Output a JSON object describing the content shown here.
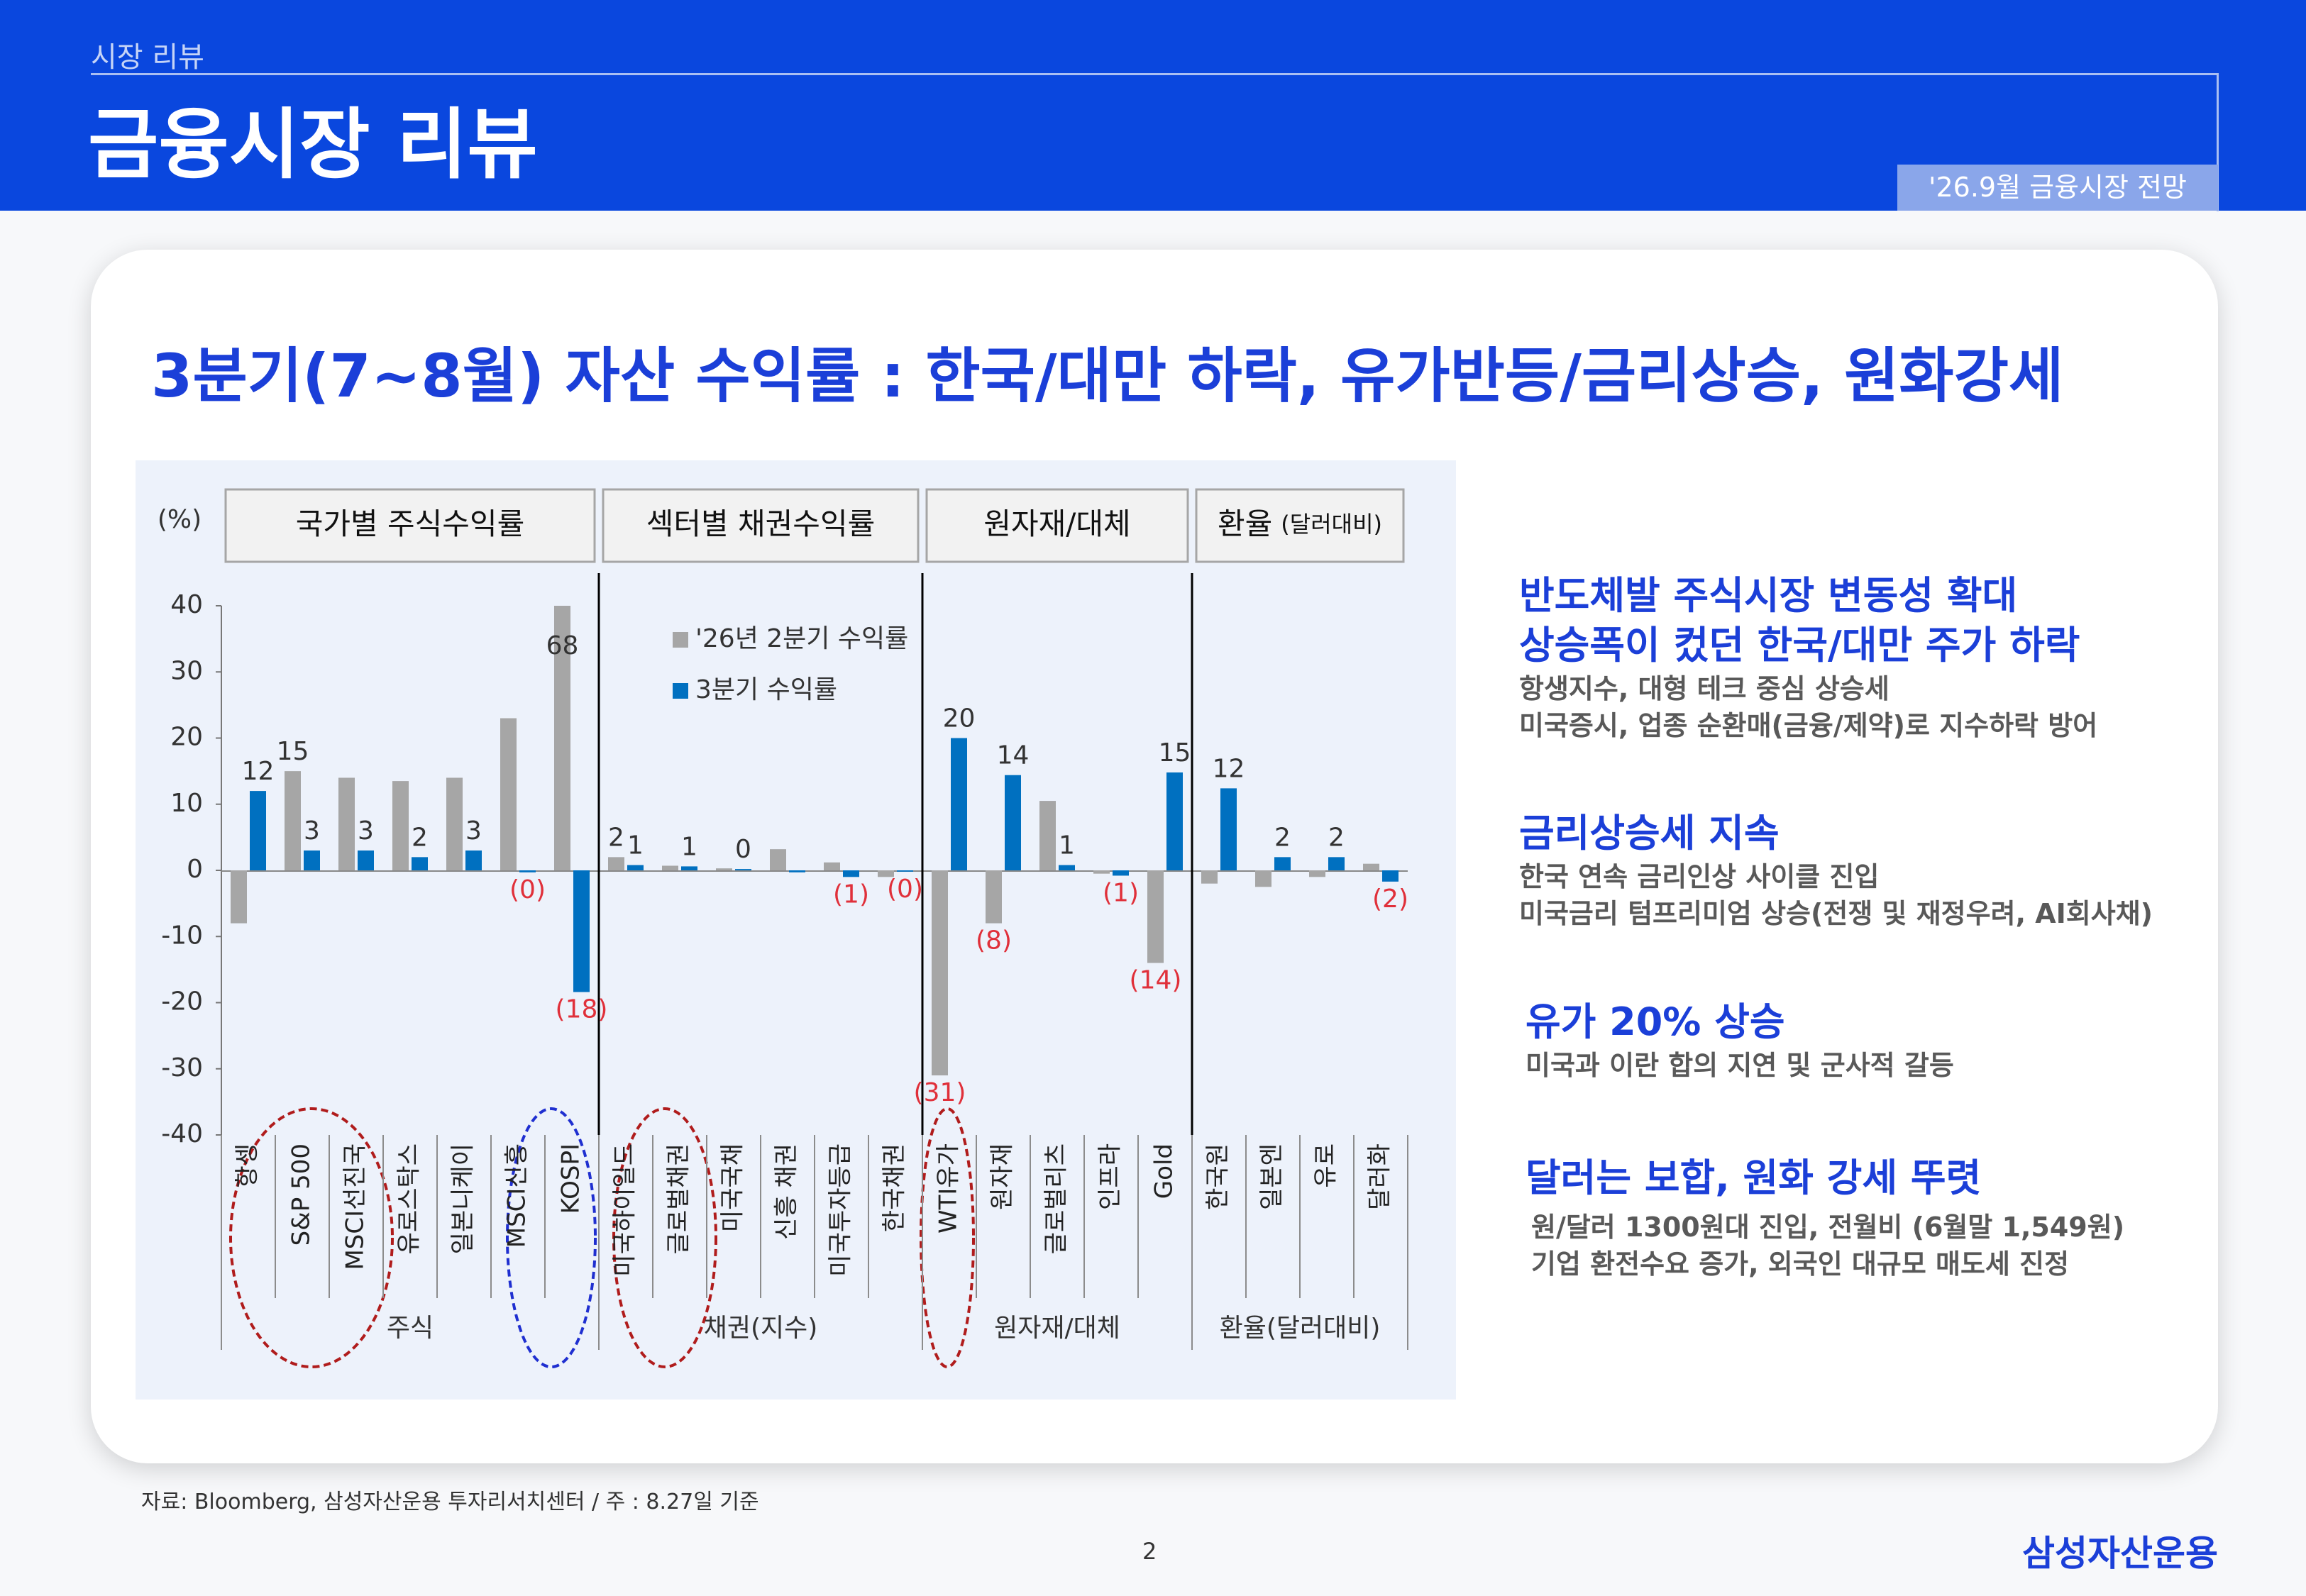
{
  "header": {
    "section": "시장 리뷰",
    "title": "금융시장 리뷰",
    "tag": "'26.9월 금융시장 전망"
  },
  "headline": "3분기(7~8월) 자산 수익률 : 한국/대만 하락, 유가반등/금리상승, 원화강세",
  "chart_data": {
    "type": "bar",
    "unit": "(%)",
    "group_headers": [
      {
        "main": "국가별 주식수익률"
      },
      {
        "main": "섹터별 채권수익률"
      },
      {
        "main": "원자재/대체"
      },
      {
        "main": "환율",
        "note": "(달러대비)"
      }
    ],
    "group_labels": [
      "주식",
      "채권(지수)",
      "원자재/대체",
      "환율(달러대비)"
    ],
    "categories": [
      "항셍",
      "S&P 500",
      "MSCI선진국",
      "유로스탁스",
      "일본니케이",
      "MSCI신흥",
      "KOSPI",
      "미국하이일드",
      "글로벌채권",
      "미국국채",
      "신흥 채권",
      "미국투자등급",
      "한국채권",
      "WTI유가",
      "원자재",
      "글로벌리츠",
      "인프라",
      "Gold",
      "한국원",
      "일본엔",
      "유로",
      "달러화"
    ],
    "series": [
      {
        "name": "'26년 2분기 수익률",
        "color": "#a6a6a6",
        "values": [
          -8,
          15,
          14,
          13.5,
          14,
          23,
          68,
          2,
          0.7,
          0.3,
          3.2,
          1.2,
          -1,
          -31,
          -8,
          10.5,
          -0.5,
          -14,
          -2,
          -2.5,
          -1,
          1
        ],
        "value_labels": [
          null,
          "15",
          null,
          null,
          null,
          null,
          "68",
          "2",
          null,
          null,
          null,
          null,
          null,
          "(31)",
          "(8)",
          null,
          null,
          "(14)",
          null,
          null,
          null,
          null
        ]
      },
      {
        "name": "3분기 수익률",
        "color": "#0070c0",
        "values": [
          12,
          3,
          3,
          2,
          3,
          -0.3,
          -18.4,
          0.8,
          0.6,
          0.2,
          -0.3,
          -1,
          -0.2,
          20,
          14.4,
          0.8,
          -0.8,
          14.8,
          12.4,
          2,
          2,
          -1.7
        ],
        "value_labels": [
          "12",
          "3",
          "3",
          "2",
          "3",
          "(0)",
          "(18)",
          "1",
          "1",
          "0",
          null,
          "(1)",
          "(0)",
          "20",
          "14",
          "1",
          "(1)",
          "15",
          "12",
          "2",
          "2",
          "(2)"
        ]
      }
    ],
    "ylim": [
      -40,
      40
    ],
    "yticks": [
      -40,
      -30,
      -20,
      -10,
      0,
      10,
      20,
      30,
      40
    ]
  },
  "panel": [
    {
      "heading": [
        "반도체발 주식시장 변동성 확대",
        "상승폭이 컸던 한국/대만 주가 하락"
      ],
      "details": [
        "항생지수, 대형 테크 중심 상승세",
        "미국증시, 업종 순환매(금융/제약)로 지수하락 방어"
      ]
    },
    {
      "heading": [
        "금리상승세 지속"
      ],
      "details": [
        "한국 연속 금리인상 사이클 진입",
        "미국금리 텀프리미엄 상승(전쟁 및 재정우려, AI회사채)"
      ]
    },
    {
      "heading": [
        "유가 20% 상승"
      ],
      "details": [
        "미국과 이란 합의 지연 및 군사적 갈등"
      ]
    },
    {
      "heading": [
        "달러는 보합, 원화 강세 뚜렷"
      ],
      "details": [
        "원/달러 1300원대 진입, 전월비  (6월말 1,549원)",
        "기업 환전수요 증가, 외국인 대규모 매도세 진정"
      ]
    }
  ],
  "footer": {
    "source": "자료: Bloomberg, 삼성자산운용 투자리서치센터 / 주 : 8.27일 기준",
    "page": "2",
    "logo": "삼성자산운용"
  }
}
